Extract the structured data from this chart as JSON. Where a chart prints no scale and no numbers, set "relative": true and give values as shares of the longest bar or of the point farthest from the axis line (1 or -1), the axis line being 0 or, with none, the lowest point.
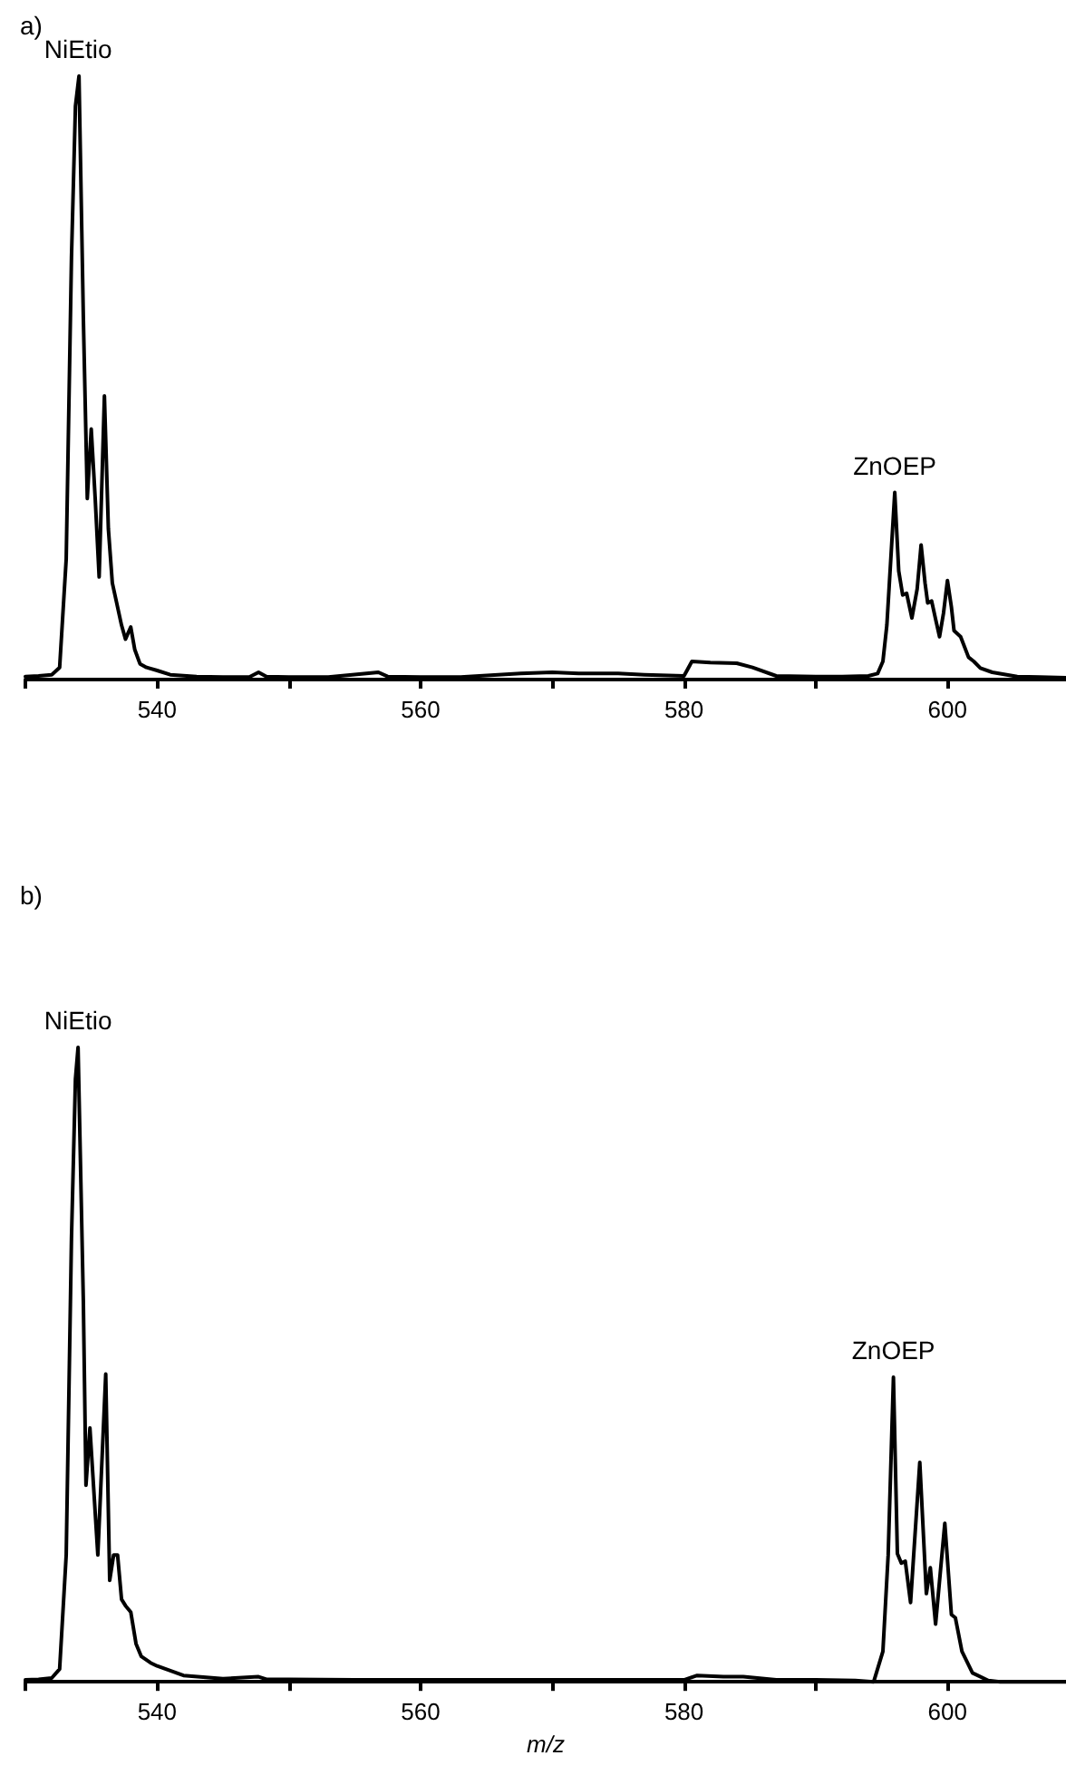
{
  "chart_data": [
    {
      "type": "line",
      "title": "a)",
      "relative": true,
      "tick_labels": "x",
      "marker": "none",
      "line_style": "solid",
      "color": "#000000",
      "xlim": [
        530,
        609
      ],
      "xticks": [
        {
          "value": 530,
          "label": null
        },
        540,
        {
          "value": 550,
          "label": null
        },
        560,
        {
          "value": 570,
          "label": null
        },
        580,
        {
          "value": 590,
          "label": null
        },
        600
      ],
      "annotations": [
        {
          "text": "NiEtio",
          "x": 534,
          "y": 1
        },
        {
          "text": "ZnOEP",
          "x": 596,
          "y": 0.31
        }
      ],
      "x": [
        530,
        531,
        532,
        532.6,
        533.1,
        533.5,
        533.8,
        534.07,
        534.4,
        534.7,
        535.0,
        535.3,
        535.6,
        536.0,
        536.3,
        536.6,
        536.9,
        537.3,
        537.6,
        538.0,
        538.3,
        538.7,
        539.2,
        540,
        541,
        543,
        545,
        547,
        547.7,
        548.3,
        550,
        553,
        556.8,
        557.5,
        560,
        563,
        567.6,
        570,
        572,
        575,
        577,
        580,
        580.6,
        582,
        584,
        585.2,
        587,
        590,
        592,
        594,
        594.7,
        595.1,
        595.4,
        595.7,
        596.0,
        596.3,
        596.6,
        596.9,
        597.3,
        597.7,
        598.0,
        598.3,
        598.5,
        598.8,
        599.1,
        599.4,
        599.7,
        600.0,
        600.3,
        600.5,
        601.0,
        601.6,
        602.0,
        602.5,
        603.4,
        605.3,
        607,
        609
      ],
      "values": [
        0.005,
        0.006,
        0.008,
        0.02,
        0.2,
        0.7,
        0.95,
        1.0,
        0.6,
        0.3,
        0.415,
        0.3,
        0.17,
        0.47,
        0.25,
        0.16,
        0.13,
        0.09,
        0.067,
        0.087,
        0.05,
        0.026,
        0.02,
        0.015,
        0.008,
        0.005,
        0.004,
        0.004,
        0.012,
        0.005,
        0.004,
        0.004,
        0.012,
        0.005,
        0.004,
        0.004,
        0.01,
        0.012,
        0.01,
        0.01,
        0.008,
        0.006,
        0.03,
        0.028,
        0.027,
        0.02,
        0.006,
        0.005,
        0.005,
        0.006,
        0.01,
        0.03,
        0.09,
        0.2,
        0.31,
        0.18,
        0.14,
        0.143,
        0.102,
        0.15,
        0.223,
        0.16,
        0.127,
        0.13,
        0.1,
        0.071,
        0.11,
        0.164,
        0.12,
        0.081,
        0.071,
        0.037,
        0.03,
        0.019,
        0.012,
        0.005,
        0.004,
        0.003
      ]
    },
    {
      "type": "line",
      "title": "b)",
      "xlabel": "m/z",
      "relative": true,
      "tick_labels": "x",
      "marker": "none",
      "line_style": "solid",
      "color": "#000000",
      "xlim": [
        530,
        609
      ],
      "xticks": [
        {
          "value": 530,
          "label": null
        },
        540,
        {
          "value": 550,
          "label": null
        },
        560,
        {
          "value": 570,
          "label": null
        },
        580,
        {
          "value": 590,
          "label": null
        },
        600
      ],
      "annotations": [
        {
          "text": "NiEtio",
          "x": 534,
          "y": 1
        },
        {
          "text": "ZnOEP",
          "x": 595.9,
          "y": 0.48
        }
      ],
      "x": [
        530,
        531,
        532,
        532.6,
        533.1,
        533.5,
        533.8,
        534.0,
        534.4,
        534.6,
        534.9,
        535.2,
        535.5,
        536.1,
        536.4,
        536.7,
        537.0,
        537.3,
        537.6,
        538.0,
        538.4,
        538.8,
        539.5,
        540,
        542,
        545,
        547.7,
        548.3,
        550,
        555,
        560,
        565,
        570,
        575,
        580,
        581,
        583,
        584.5,
        587,
        590,
        593,
        594.4,
        595.1,
        595.5,
        595.9,
        596.2,
        596.5,
        596.8,
        597.2,
        597.9,
        598.4,
        598.7,
        599.1,
        599.8,
        600.3,
        600.6,
        601.1,
        601.9,
        603.1,
        604,
        606,
        609
      ],
      "values": [
        0.003,
        0.004,
        0.006,
        0.02,
        0.2,
        0.7,
        0.95,
        1.0,
        0.6,
        0.31,
        0.4,
        0.3,
        0.2,
        0.485,
        0.16,
        0.2,
        0.2,
        0.13,
        0.12,
        0.11,
        0.06,
        0.04,
        0.03,
        0.025,
        0.01,
        0.005,
        0.008,
        0.004,
        0.004,
        0.003,
        0.003,
        0.003,
        0.003,
        0.003,
        0.003,
        0.01,
        0.008,
        0.008,
        0.003,
        0.003,
        0.002,
        0.0,
        0.048,
        0.2,
        0.48,
        0.202,
        0.187,
        0.19,
        0.125,
        0.346,
        0.139,
        0.18,
        0.091,
        0.25,
        0.106,
        0.101,
        0.048,
        0.014,
        0.002,
        0.0,
        0.0,
        0.0
      ]
    }
  ]
}
